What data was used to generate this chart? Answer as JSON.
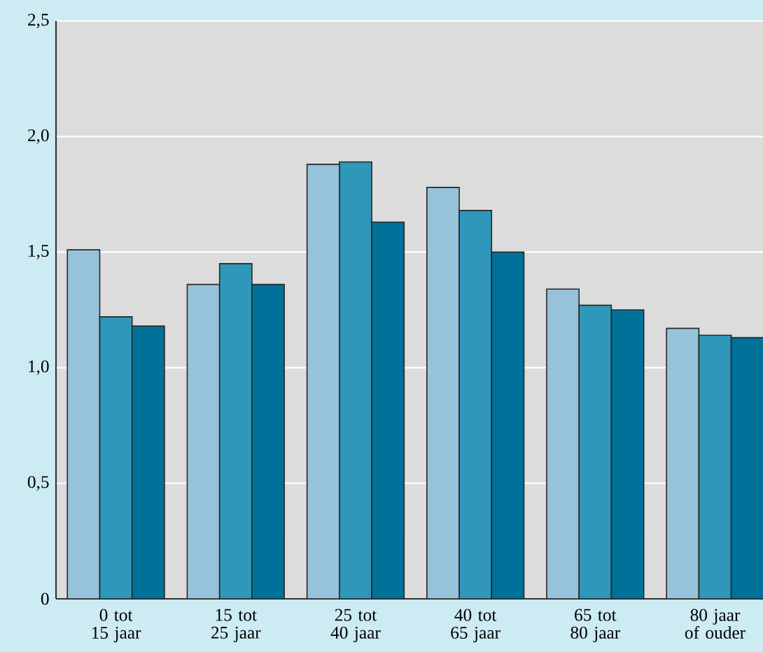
{
  "chart_data": {
    "type": "bar",
    "categories": [
      "0 tot 15 jaar",
      "15 tot 25 jaar",
      "25 tot 40 jaar",
      "40 tot 65 jaar",
      "65 tot 80 jaar",
      "80 jaar of ouder"
    ],
    "series": [
      {
        "color": "#96c3da",
        "values": [
          1.51,
          1.36,
          1.88,
          1.78,
          1.34,
          1.17
        ]
      },
      {
        "color": "#2f97b9",
        "values": [
          1.22,
          1.45,
          1.89,
          1.68,
          1.27,
          1.14
        ]
      },
      {
        "color": "#00729a",
        "values": [
          1.18,
          1.36,
          1.63,
          1.5,
          1.25,
          1.13
        ]
      }
    ],
    "ylim": [
      0,
      2.5
    ],
    "yticks": [
      0,
      {
        "value": 0.5,
        "label": "0,5"
      },
      {
        "value": 1.0,
        "label": "1,0"
      },
      {
        "value": 1.5,
        "label": "1,5"
      },
      {
        "value": 2.0,
        "label": "2,0"
      },
      {
        "value": 2.5,
        "label": "2,5"
      }
    ],
    "grid": "y",
    "legend": false
  }
}
